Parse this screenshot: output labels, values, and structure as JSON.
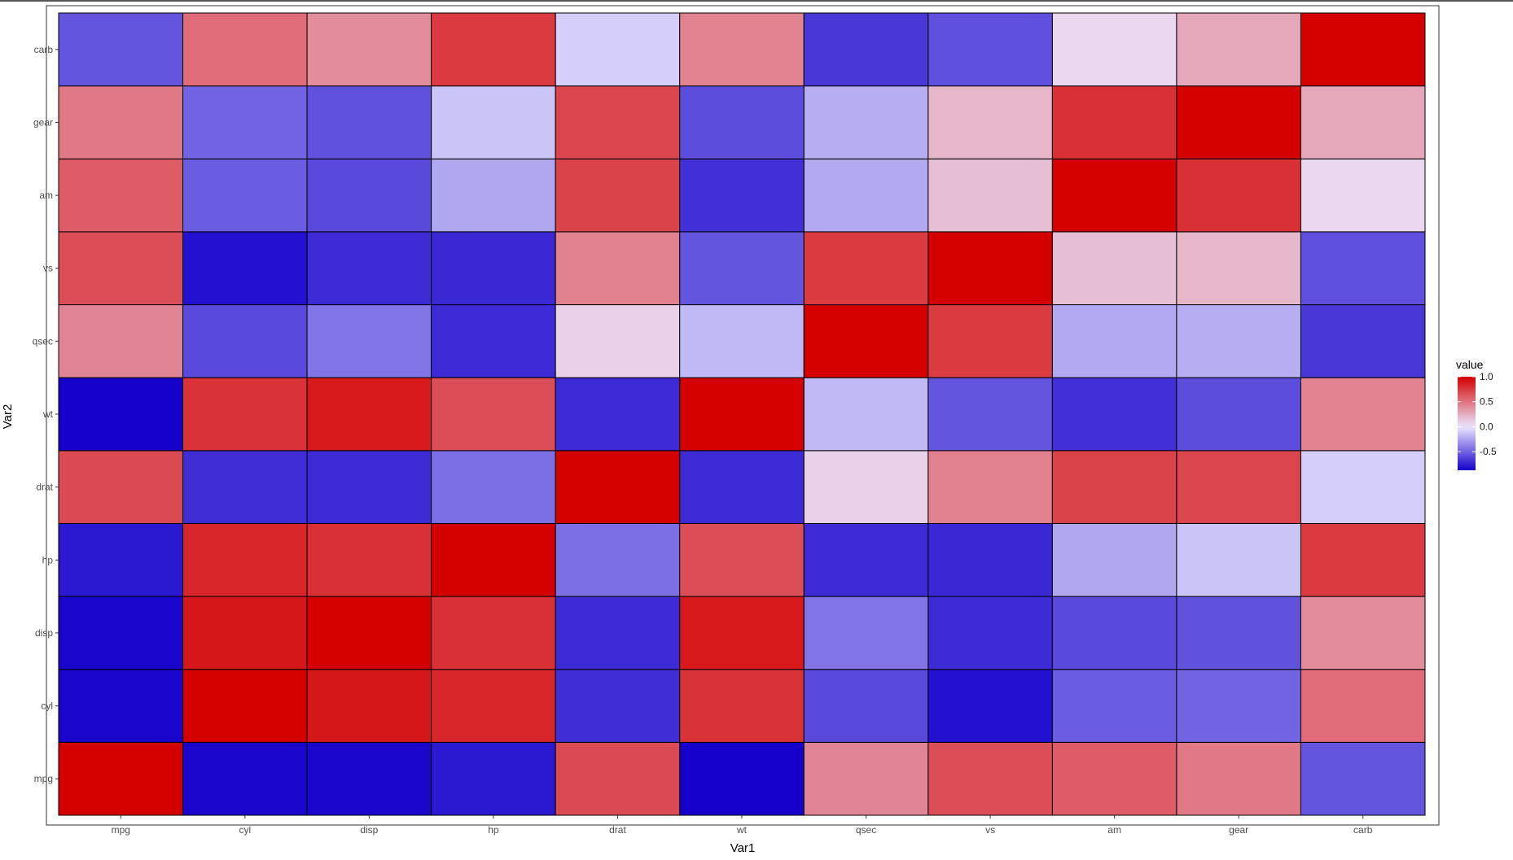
{
  "chart_data": {
    "type": "heatmap",
    "title": "",
    "xlabel": "Var1",
    "ylabel": "Var2",
    "x": [
      "mpg",
      "cyl",
      "disp",
      "hp",
      "drat",
      "wt",
      "qsec",
      "vs",
      "am",
      "gear",
      "carb"
    ],
    "y": [
      "mpg",
      "cyl",
      "disp",
      "hp",
      "drat",
      "wt",
      "qsec",
      "vs",
      "am",
      "gear",
      "carb"
    ],
    "values": [
      [
        1.0,
        -0.85,
        -0.85,
        -0.78,
        0.68,
        -0.87,
        0.42,
        0.66,
        0.6,
        0.48,
        -0.55
      ],
      [
        -0.85,
        1.0,
        0.9,
        0.83,
        -0.7,
        0.78,
        -0.59,
        -0.81,
        -0.52,
        -0.49,
        0.53
      ],
      [
        -0.85,
        0.9,
        1.0,
        0.79,
        -0.71,
        0.89,
        -0.43,
        -0.71,
        -0.59,
        -0.56,
        0.39
      ],
      [
        -0.78,
        0.83,
        0.79,
        1.0,
        -0.45,
        0.66,
        -0.71,
        -0.72,
        -0.24,
        -0.13,
        0.75
      ],
      [
        0.68,
        -0.7,
        -0.71,
        -0.45,
        1.0,
        -0.71,
        0.09,
        0.44,
        0.71,
        0.7,
        -0.09
      ],
      [
        -0.87,
        0.78,
        0.89,
        0.66,
        -0.71,
        1.0,
        -0.17,
        -0.55,
        -0.69,
        -0.58,
        0.43
      ],
      [
        0.42,
        -0.59,
        -0.43,
        -0.71,
        0.09,
        -0.17,
        1.0,
        0.74,
        -0.23,
        -0.21,
        -0.66
      ],
      [
        0.66,
        -0.81,
        -0.71,
        -0.72,
        0.44,
        -0.55,
        0.74,
        1.0,
        0.17,
        0.21,
        -0.57
      ],
      [
        0.6,
        -0.52,
        -0.59,
        -0.24,
        0.71,
        -0.69,
        -0.23,
        0.17,
        1.0,
        0.79,
        0.06
      ],
      [
        0.48,
        -0.49,
        -0.56,
        -0.13,
        0.7,
        -0.58,
        -0.21,
        0.21,
        0.79,
        1.0,
        0.27
      ],
      [
        -0.55,
        0.53,
        0.39,
        0.75,
        -0.09,
        0.43,
        -0.66,
        -0.57,
        0.06,
        0.27,
        1.0
      ]
    ],
    "color_scale": {
      "low": "#1500cc",
      "mid": "#ebe6ff",
      "high": "#d40000",
      "domain": [
        -0.87,
        1.0
      ]
    },
    "legend": {
      "title": "value",
      "ticks": [
        1.0,
        0.5,
        0.0,
        -0.5
      ],
      "tick_labels": [
        "1.0",
        "0.5",
        "0.0",
        "-0.5"
      ],
      "position": "right"
    },
    "grid": true
  }
}
